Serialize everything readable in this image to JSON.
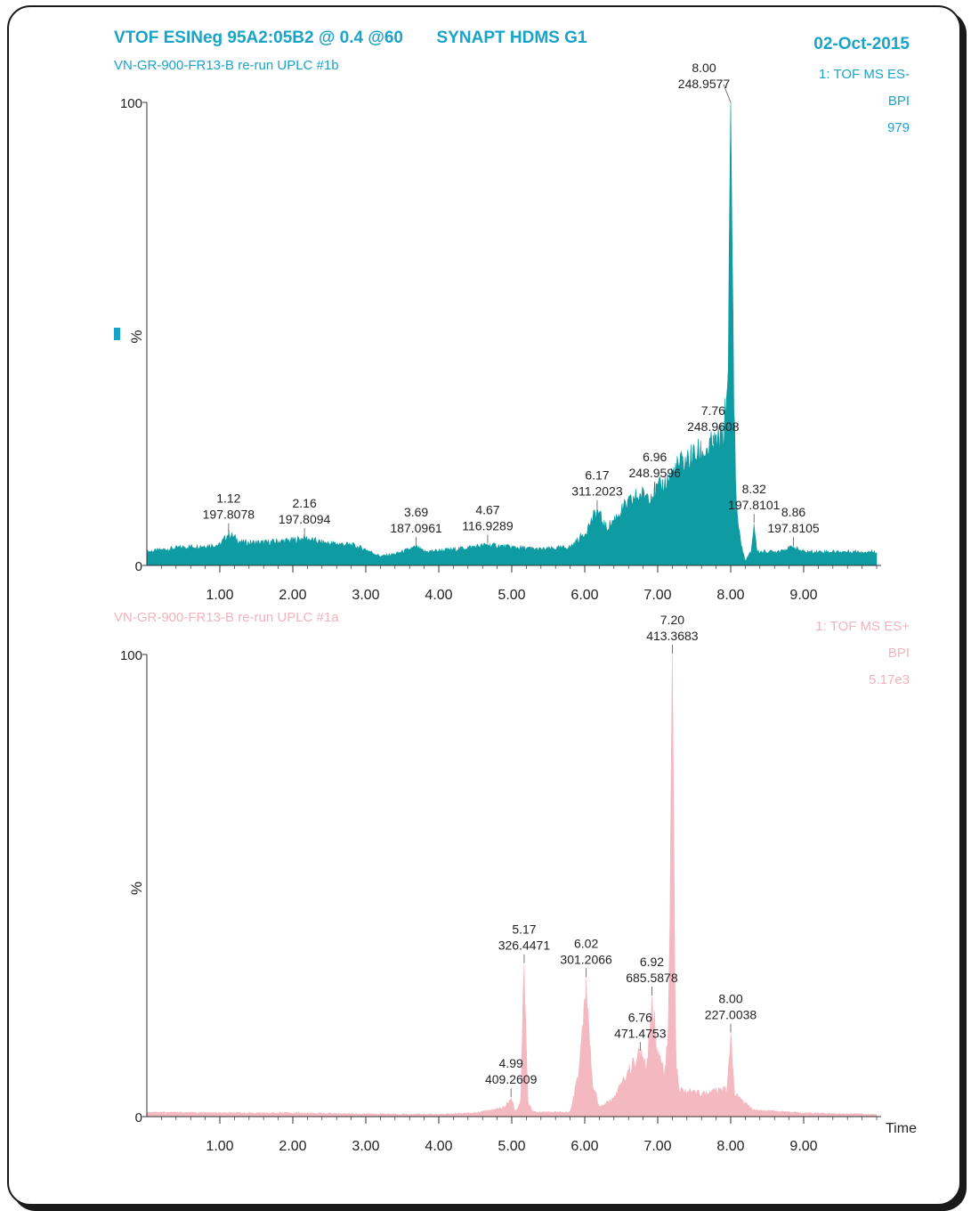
{
  "header": {
    "method": "VTOF ESINeg 95A2:05B2 @ 0.4 @60",
    "instrument": "SYNAPT HDMS G1",
    "date": "02-Oct-2015"
  },
  "colors": {
    "negative_trace": "#0e9ba1",
    "negative_text": "#1aa3c9",
    "positive_trace": "#f4b8c0",
    "positive_text": "#f2b3bc",
    "axis": "#333333"
  },
  "chart_data": [
    {
      "type": "area",
      "sample": "VN-GR-900-FR13-B re-run UPLC #1b",
      "function": "1: TOF MS ES-",
      "trace": "BPI",
      "intensity": "979",
      "ylabel": "%",
      "xlabel": "",
      "xlim": [
        0,
        10
      ],
      "ylim": [
        0,
        100
      ],
      "x_ticks": [
        "1.00",
        "2.00",
        "3.00",
        "4.00",
        "5.00",
        "6.00",
        "7.00",
        "8.00",
        "9.00"
      ],
      "y_ticks": [
        "0",
        "100"
      ],
      "x": [
        0.0,
        0.5,
        1.0,
        1.12,
        1.3,
        1.6,
        2.0,
        2.16,
        2.4,
        2.8,
        3.0,
        3.2,
        3.4,
        3.69,
        3.8,
        4.2,
        4.67,
        5.0,
        5.4,
        5.8,
        6.0,
        6.17,
        6.3,
        6.5,
        6.7,
        6.96,
        7.1,
        7.3,
        7.5,
        7.76,
        7.9,
        7.96,
        8.0,
        8.04,
        8.08,
        8.15,
        8.2,
        8.28,
        8.32,
        8.36,
        8.45,
        8.6,
        8.86,
        9.0,
        9.4,
        9.8,
        9.99
      ],
      "y": [
        3,
        4,
        4.5,
        7,
        5,
        5,
        5.5,
        6,
        5,
        4.5,
        3.5,
        2,
        2.5,
        4,
        3,
        3.5,
        4.5,
        4,
        3.5,
        4,
        7,
        12,
        8,
        12,
        15,
        16,
        18,
        22,
        24,
        26,
        28,
        40,
        100,
        40,
        12,
        4,
        1,
        3,
        9,
        3,
        3,
        3,
        4,
        3,
        3,
        3,
        3
      ],
      "peaks": [
        {
          "rt": 1.12,
          "mz": "197.8078",
          "intensity": 7
        },
        {
          "rt": 2.16,
          "mz": "197.8094",
          "intensity": 6
        },
        {
          "rt": 3.69,
          "mz": "187.0961",
          "intensity": 4
        },
        {
          "rt": 4.67,
          "mz": "116.9289",
          "intensity": 4.5
        },
        {
          "rt": 6.17,
          "mz": "311.2023",
          "intensity": 12
        },
        {
          "rt": 6.96,
          "mz": "248.9596",
          "intensity": 16
        },
        {
          "rt": 7.76,
          "mz": "248.9608",
          "intensity": 26
        },
        {
          "rt": 8.0,
          "mz": "248.9577",
          "intensity": 100
        },
        {
          "rt": 8.32,
          "mz": "197.8101",
          "intensity": 9
        },
        {
          "rt": 8.86,
          "mz": "197.8105",
          "intensity": 4
        }
      ],
      "peak_labels": [
        {
          "rt": "1.12",
          "mz": "197.8078"
        },
        {
          "rt": "2.16",
          "mz": "197.8094"
        },
        {
          "rt": "3.69",
          "mz": "187.0961"
        },
        {
          "rt": "4.67",
          "mz": "116.9289"
        },
        {
          "rt": "6.17",
          "mz": "311.2023"
        },
        {
          "rt": "6.96",
          "mz": "248.9596"
        },
        {
          "rt": "7.76",
          "mz": "248.9608"
        },
        {
          "rt": "8.00",
          "mz": "248.9577"
        },
        {
          "rt": "8.32",
          "mz": "197.8101"
        },
        {
          "rt": "8.86",
          "mz": "197.8105"
        }
      ]
    },
    {
      "type": "area",
      "sample": "VN-GR-900-FR13-B re-run UPLC #1a",
      "function": "1: TOF MS ES+",
      "trace": "BPI",
      "intensity": "5.17e3",
      "ylabel": "%",
      "xlabel": "Time",
      "xlim": [
        0,
        10
      ],
      "ylim": [
        0,
        100
      ],
      "x_ticks": [
        "1.00",
        "2.00",
        "3.00",
        "4.00",
        "5.00",
        "6.00",
        "7.00",
        "8.00",
        "9.00"
      ],
      "y_ticks": [
        "0",
        "100"
      ],
      "x": [
        0.0,
        1.0,
        2.0,
        3.0,
        4.0,
        4.5,
        4.9,
        4.99,
        5.05,
        5.12,
        5.17,
        5.22,
        5.3,
        5.8,
        5.92,
        6.02,
        6.1,
        6.2,
        6.4,
        6.6,
        6.76,
        6.85,
        6.92,
        7.0,
        7.1,
        7.15,
        7.2,
        7.25,
        7.3,
        7.6,
        7.95,
        8.0,
        8.05,
        8.3,
        9.0,
        9.99
      ],
      "y": [
        1,
        0.8,
        0.8,
        0.6,
        0.5,
        0.8,
        2,
        4,
        1,
        3,
        33,
        3,
        1,
        1,
        10,
        30,
        8,
        2,
        4,
        10,
        14,
        10,
        26,
        14,
        10,
        20,
        100,
        12,
        6,
        5,
        6,
        18,
        5,
        1.5,
        0.8,
        0.5
      ],
      "peaks": [
        {
          "rt": 4.99,
          "mz": "409.2609",
          "intensity": 4
        },
        {
          "rt": 5.17,
          "mz": "326.4471",
          "intensity": 33
        },
        {
          "rt": 6.02,
          "mz": "301.2066",
          "intensity": 30
        },
        {
          "rt": 6.76,
          "mz": "471.4753",
          "intensity": 14
        },
        {
          "rt": 6.92,
          "mz": "685.5878",
          "intensity": 26
        },
        {
          "rt": 7.2,
          "mz": "413.3683",
          "intensity": 100
        },
        {
          "rt": 8.0,
          "mz": "227.0038",
          "intensity": 18
        }
      ],
      "peak_labels": [
        {
          "rt": "4.99",
          "mz": "409.2609"
        },
        {
          "rt": "5.17",
          "mz": "326.4471"
        },
        {
          "rt": "6.02",
          "mz": "301.2066"
        },
        {
          "rt": "6.76",
          "mz": "471.4753"
        },
        {
          "rt": "6.92",
          "mz": "685.5878"
        },
        {
          "rt": "7.20",
          "mz": "413.3683"
        },
        {
          "rt": "8.00",
          "mz": "227.0038"
        }
      ]
    }
  ]
}
